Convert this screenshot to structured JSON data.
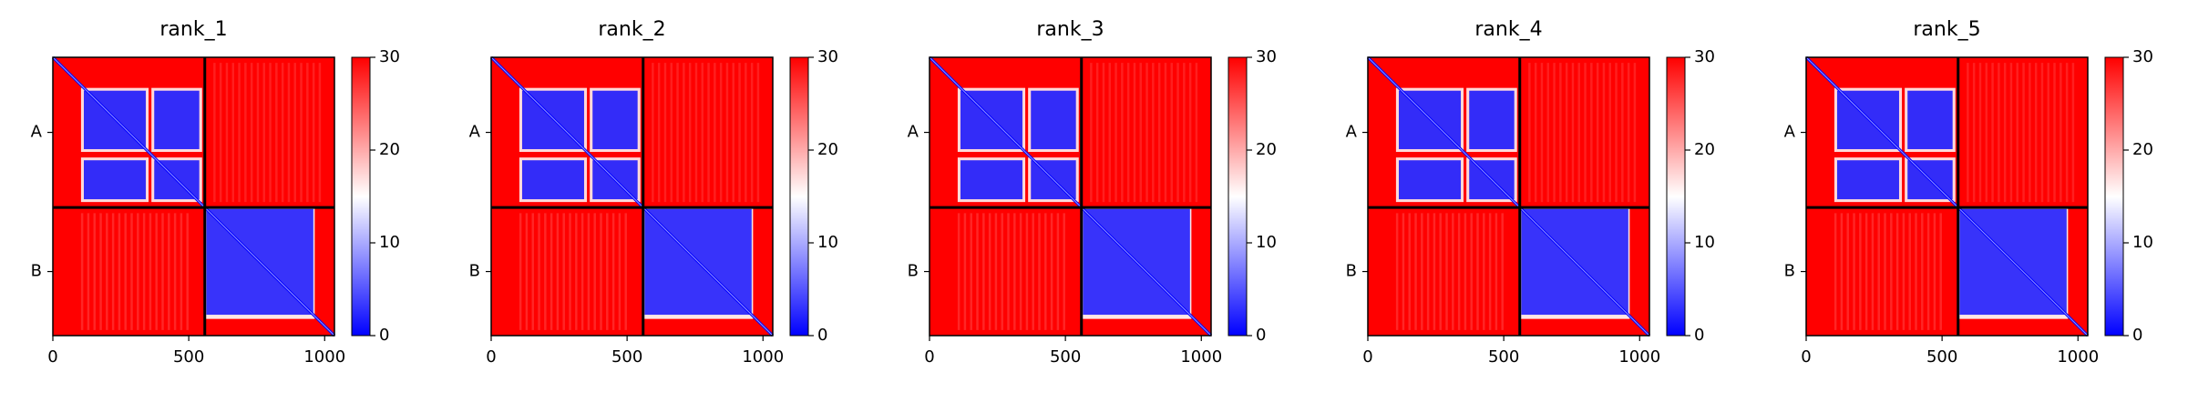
{
  "chart_data": [
    {
      "type": "heatmap",
      "title": "rank_1",
      "categories": [
        "A",
        "B"
      ],
      "chain_boundary": 559,
      "xlim": [
        0,
        1036
      ],
      "xticks": [
        0,
        500,
        1000
      ],
      "clim": [
        0,
        30
      ],
      "cticks": [
        0,
        10,
        20,
        30
      ],
      "colors": [
        "#0000ff",
        "#ffffff",
        "#ff0000"
      ]
    },
    {
      "type": "heatmap",
      "title": "rank_2",
      "categories": [
        "A",
        "B"
      ],
      "chain_boundary": 559,
      "xlim": [
        0,
        1036
      ],
      "xticks": [
        0,
        500,
        1000
      ],
      "clim": [
        0,
        30
      ],
      "cticks": [
        0,
        10,
        20,
        30
      ],
      "colors": [
        "#0000ff",
        "#ffffff",
        "#ff0000"
      ]
    },
    {
      "type": "heatmap",
      "title": "rank_3",
      "categories": [
        "A",
        "B"
      ],
      "chain_boundary": 559,
      "xlim": [
        0,
        1036
      ],
      "xticks": [
        0,
        500,
        1000
      ],
      "clim": [
        0,
        30
      ],
      "cticks": [
        0,
        10,
        20,
        30
      ],
      "colors": [
        "#0000ff",
        "#ffffff",
        "#ff0000"
      ]
    },
    {
      "type": "heatmap",
      "title": "rank_4",
      "categories": [
        "A",
        "B"
      ],
      "chain_boundary": 559,
      "xlim": [
        0,
        1036
      ],
      "xticks": [
        0,
        500,
        1000
      ],
      "clim": [
        0,
        30
      ],
      "cticks": [
        0,
        10,
        20,
        30
      ],
      "colors": [
        "#0000ff",
        "#ffffff",
        "#ff0000"
      ]
    },
    {
      "type": "heatmap",
      "title": "rank_5",
      "categories": [
        "A",
        "B"
      ],
      "chain_boundary": 559,
      "xlim": [
        0,
        1036
      ],
      "xticks": [
        0,
        500,
        1000
      ],
      "clim": [
        0,
        30
      ],
      "cticks": [
        0,
        10,
        20,
        30
      ],
      "colors": [
        "#0000ff",
        "#ffffff",
        "#ff0000"
      ]
    }
  ]
}
